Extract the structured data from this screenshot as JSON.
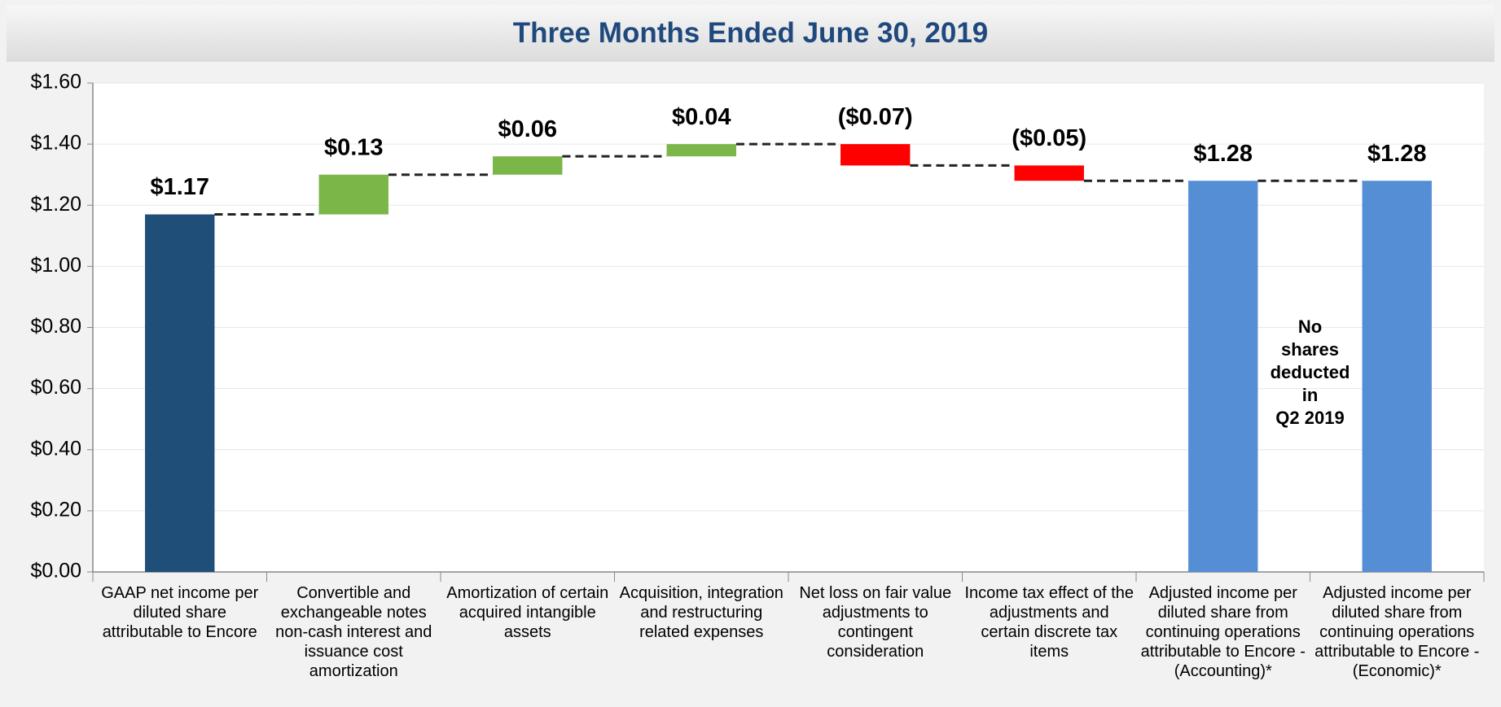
{
  "chart_data": {
    "type": "waterfall",
    "title": "Three Months Ended June 30, 2019",
    "categories": [
      "GAAP net income per diluted share attributable to Encore",
      "Convertible and exchangeable notes non-cash interest and issuance cost amortization",
      "Amortization of certain acquired intangible assets",
      "Acquisition, integration and restructuring related expenses",
      "Net loss on fair value adjustments to contingent consideration",
      "Income tax effect of the adjustments and certain discrete tax items",
      "Adjusted income per diluted share from continuing operations attributable to Encore - (Accounting)*",
      "Adjusted income per diluted share from continuing operations attributable to Encore - (Economic)*"
    ],
    "values": [
      1.17,
      0.13,
      0.06,
      0.04,
      -0.07,
      -0.05,
      1.28,
      1.28
    ],
    "value_labels": [
      "$1.17",
      "$0.13",
      "$0.06",
      "$0.04",
      "($0.07)",
      "($0.05)",
      "$1.28",
      "$1.28"
    ],
    "measure": [
      "absolute",
      "relative",
      "relative",
      "relative",
      "relative",
      "relative",
      "total",
      "total"
    ],
    "colors": [
      "#1f4e79",
      "#7ab648",
      "#7ab648",
      "#7ab648",
      "#ff0000",
      "#ff0000",
      "#558ed5",
      "#558ed5"
    ],
    "ylim": [
      0,
      1.6
    ],
    "yticks": [
      {
        "value": 0,
        "label": "$0.00"
      },
      {
        "value": 0.2,
        "label": "$0.20"
      },
      {
        "value": 0.4,
        "label": "$0.40"
      },
      {
        "value": 0.6,
        "label": "$0.60"
      },
      {
        "value": 0.8,
        "label": "$0.80"
      },
      {
        "value": 1.0,
        "label": "$1.00"
      },
      {
        "value": 1.2,
        "label": "$1.20"
      },
      {
        "value": 1.4,
        "label": "$1.40"
      },
      {
        "value": 1.6,
        "label": "$1.60"
      }
    ],
    "grid": true,
    "annotation": "No\nshares\ndeducted\nin\nQ2 2019"
  }
}
